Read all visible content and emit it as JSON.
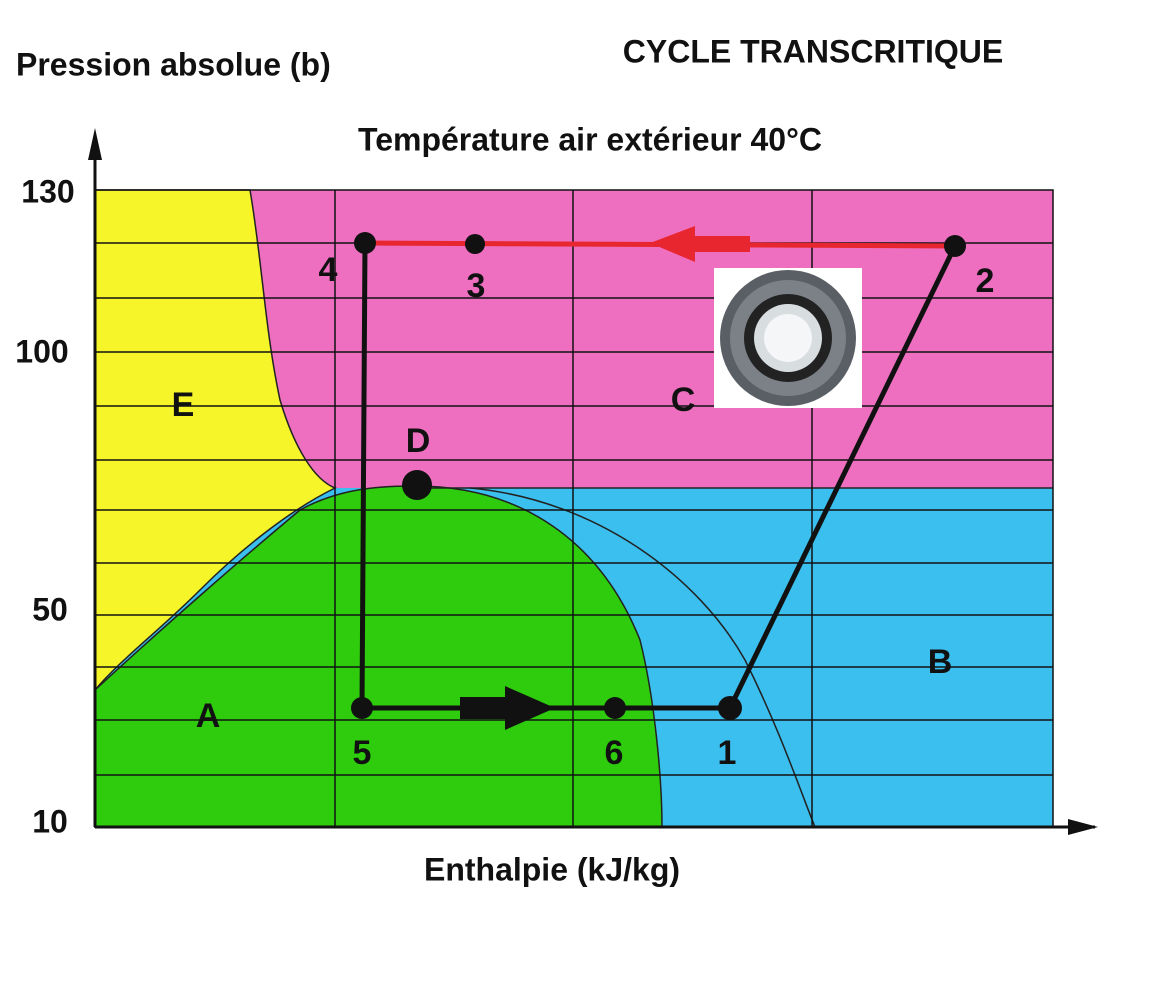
{
  "header": {
    "y_axis_label": "Pression absolue (b)",
    "title": "CYCLE TRANSCRITIQUE",
    "subtitle": "Température air extérieur 40°C",
    "x_axis_label": "Enthalpie (kJ/kg)"
  },
  "axis": {
    "y_ticks": [
      "130",
      "100",
      "50",
      "10"
    ]
  },
  "regions": {
    "A": "A",
    "B": "B",
    "C": "C",
    "D": "D",
    "E": "E"
  },
  "points": [
    "1",
    "2",
    "3",
    "4",
    "5",
    "6"
  ]
}
